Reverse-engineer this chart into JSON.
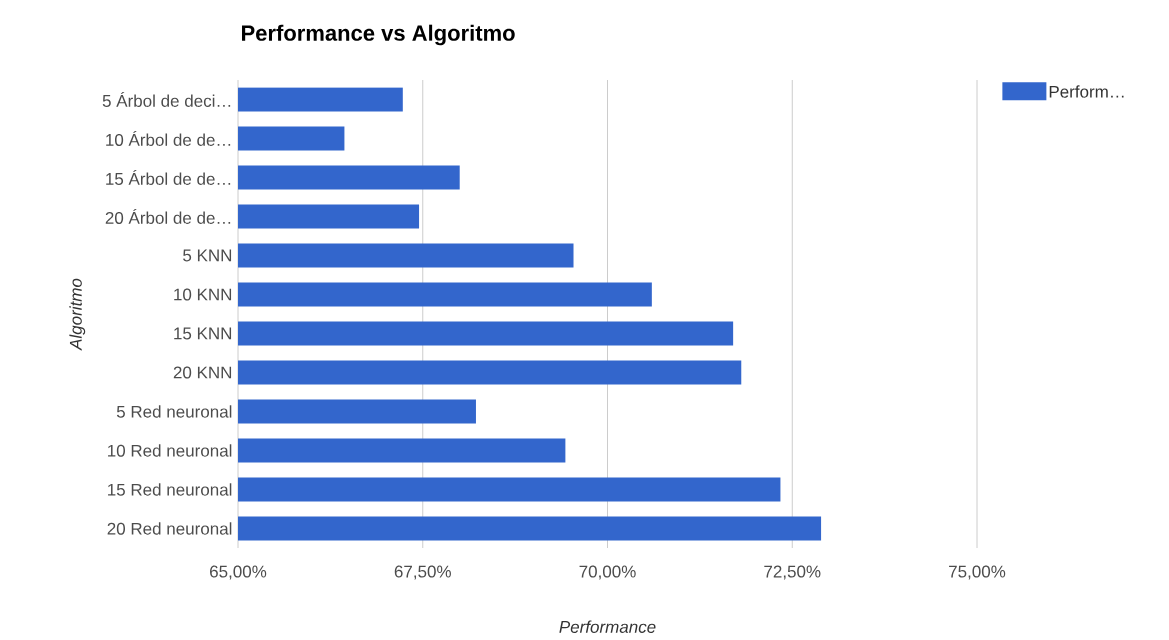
{
  "chart_data": {
    "type": "bar",
    "orientation": "horizontal",
    "title": "Performance vs Algoritmo",
    "xlabel": "Performance",
    "ylabel": "Algoritmo",
    "categories": [
      "5 Árbol de deci…",
      "10 Árbol de de…",
      "15 Árbol de de…",
      "20 Árbol de de…",
      "5 KNN",
      "10 KNN",
      "15 KNN",
      "20 KNN",
      "5 Red neuronal",
      "10 Red neuronal",
      "15 Red neuronal",
      "20 Red neuronal"
    ],
    "series": [
      {
        "name": "Perform…",
        "color": "#3366cc",
        "values": [
          67.23,
          66.44,
          68.0,
          67.45,
          69.54,
          70.6,
          71.7,
          71.81,
          68.22,
          69.43,
          72.34,
          72.89
        ]
      }
    ],
    "xlim": [
      65,
      75
    ],
    "xticks": [
      {
        "value": 65,
        "label": "65,00%"
      },
      {
        "value": 67.5,
        "label": "67,50%"
      },
      {
        "value": 70,
        "label": "70,00%"
      },
      {
        "value": 72.5,
        "label": "72,50%"
      },
      {
        "value": 75,
        "label": "75,00%"
      }
    ],
    "grid": "x",
    "legend": "top right"
  }
}
